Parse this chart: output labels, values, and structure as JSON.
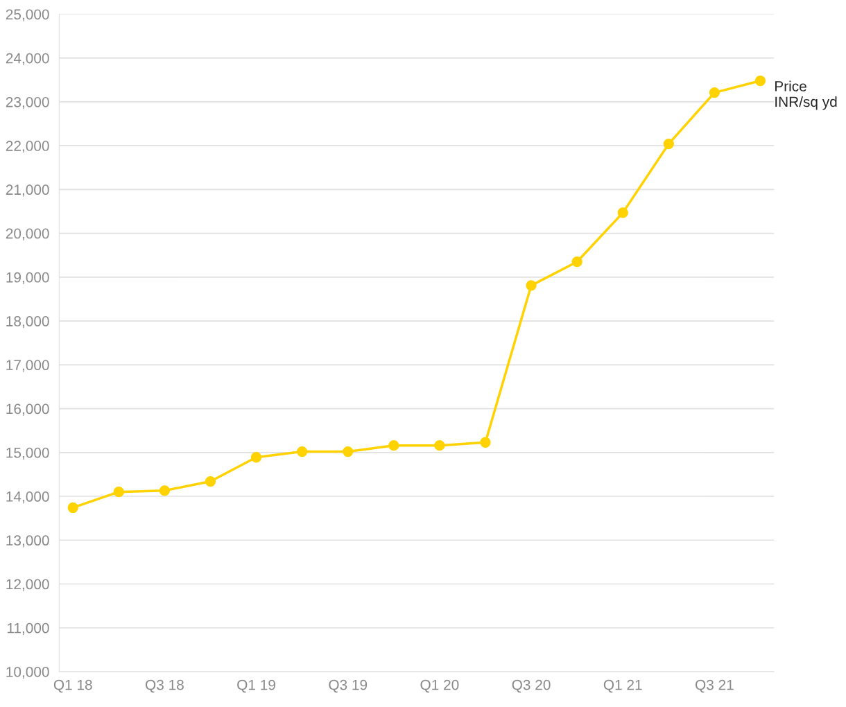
{
  "chart_data": {
    "type": "line",
    "categories": [
      "Q1 18",
      null,
      "Q3 18",
      null,
      "Q1 19",
      null,
      "Q3 19",
      null,
      "Q1 20",
      null,
      "Q3 20",
      null,
      "Q1 21",
      null,
      "Q3 21",
      null
    ],
    "series": [
      {
        "name": "Price INR/sq yd",
        "color": "#ffd200",
        "values": [
          13740,
          14100,
          14130,
          14340,
          14890,
          15020,
          15020,
          15160,
          15160,
          15230,
          18810,
          19350,
          20470,
          22040,
          23210,
          23480
        ]
      }
    ],
    "ylim": [
      10000,
      25000
    ],
    "yticks": [
      {
        "value": 10000,
        "label": "10,000"
      },
      {
        "value": 11000,
        "label": "11,000"
      },
      {
        "value": 12000,
        "label": "12,000"
      },
      {
        "value": 13000,
        "label": "13,000"
      },
      {
        "value": 14000,
        "label": "14,000"
      },
      {
        "value": 15000,
        "label": "15,000"
      },
      {
        "value": 16000,
        "label": "16,000"
      },
      {
        "value": 17000,
        "label": "17,000"
      },
      {
        "value": 18000,
        "label": "18,000"
      },
      {
        "value": 19000,
        "label": "19,000"
      },
      {
        "value": 20000,
        "label": "20,000"
      },
      {
        "value": 21000,
        "label": "21,000"
      },
      {
        "value": 22000,
        "label": "22,000"
      },
      {
        "value": 23000,
        "label": "23,000"
      },
      {
        "value": 24000,
        "label": "24,000"
      },
      {
        "value": 25000,
        "label": "25,000"
      }
    ],
    "grid": "y",
    "marker": "circle",
    "line_style": "solid",
    "legend": false
  }
}
